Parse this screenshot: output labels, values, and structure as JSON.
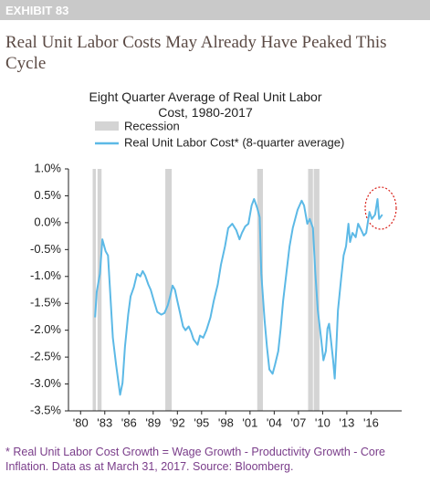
{
  "header": {
    "label": "EXHIBIT 83",
    "title": "Real Unit Labor Costs May Already Have Peaked This Cycle"
  },
  "chart_data": {
    "type": "line",
    "title": "Eight Quarter Average of Real Unit Labor Cost, 1980-2017",
    "recessions": {
      "name": "Recession",
      "color": "#d4d4d4",
      "spans": [
        [
          1981.5,
          1981.9
        ],
        [
          1982.1,
          1982.6
        ],
        [
          1990.5,
          1991.3
        ],
        [
          2001.9,
          2002.6
        ],
        [
          2008.2,
          2008.8
        ],
        [
          2008.9,
          2009.6
        ]
      ]
    },
    "series": [
      {
        "name": "Real Unit Labor Cost* (8-quarter average)",
        "color": "#5cb9e6",
        "x": [
          1981.8,
          1982.0,
          1982.4,
          1982.7,
          1983.1,
          1983.4,
          1983.6,
          1984.0,
          1984.4,
          1984.9,
          1985.2,
          1985.5,
          1985.9,
          1986.2,
          1986.6,
          1987.0,
          1987.4,
          1987.7,
          1988.0,
          1988.4,
          1988.7,
          1989.1,
          1989.5,
          1990.0,
          1990.4,
          1990.8,
          1991.1,
          1991.4,
          1991.7,
          1992.0,
          1992.3,
          1992.7,
          1993.0,
          1993.4,
          1993.7,
          1994.0,
          1994.5,
          1994.8,
          1995.2,
          1995.6,
          1996.1,
          1996.5,
          1997.0,
          1997.4,
          1997.9,
          1998.3,
          1998.8,
          1999.3,
          1999.7,
          2000.0,
          2000.4,
          2000.8,
          2001.2,
          2001.5,
          2001.9,
          2002.2,
          2002.4,
          2002.8,
          2003.1,
          2003.4,
          2003.8,
          2004.1,
          2004.5,
          2004.8,
          2005.1,
          2005.5,
          2005.9,
          2006.3,
          2006.6,
          2006.9,
          2007.4,
          2007.7,
          2008.1,
          2008.4,
          2008.8,
          2009.1,
          2009.4,
          2009.8,
          2010.1,
          2010.4,
          2010.6,
          2010.8,
          2011.0,
          2011.3,
          2011.5,
          2011.7,
          2011.9,
          2012.3,
          2012.6,
          2012.9,
          2013.2,
          2013.4,
          2013.7,
          2014.1,
          2014.4,
          2014.8,
          2015.1,
          2015.4,
          2015.8,
          2016.1,
          2016.5,
          2016.8,
          2017.0,
          2017.4
        ],
        "values": [
          -1.76,
          -1.29,
          -0.95,
          -0.31,
          -0.53,
          -0.61,
          -1.12,
          -2.14,
          -2.64,
          -3.2,
          -2.98,
          -2.31,
          -1.71,
          -1.37,
          -1.2,
          -0.95,
          -1.0,
          -0.9,
          -0.98,
          -1.15,
          -1.25,
          -1.46,
          -1.66,
          -1.71,
          -1.68,
          -1.54,
          -1.37,
          -1.17,
          -1.25,
          -1.46,
          -1.66,
          -1.93,
          -2.0,
          -1.93,
          -2.03,
          -2.17,
          -2.27,
          -2.1,
          -2.14,
          -2.0,
          -1.76,
          -1.46,
          -1.15,
          -0.78,
          -0.44,
          -0.1,
          -0.02,
          -0.14,
          -0.31,
          -0.19,
          -0.07,
          -0.02,
          0.32,
          0.44,
          0.27,
          0.1,
          -0.95,
          -1.8,
          -2.31,
          -2.73,
          -2.81,
          -2.64,
          -2.39,
          -1.97,
          -1.46,
          -0.95,
          -0.44,
          -0.1,
          0.07,
          0.24,
          0.41,
          0.32,
          -0.02,
          0.07,
          -0.1,
          -0.95,
          -1.63,
          -2.14,
          -2.56,
          -2.39,
          -1.97,
          -1.88,
          -2.14,
          -2.56,
          -2.9,
          -2.31,
          -1.63,
          -1.03,
          -0.61,
          -0.44,
          -0.02,
          -0.36,
          -0.19,
          -0.27,
          -0.02,
          -0.14,
          -0.24,
          -0.19,
          0.2,
          0.07,
          0.15,
          0.44,
          0.07,
          0.15
        ]
      }
    ],
    "xlim": [
      1978.5,
      2019.8
    ],
    "xticks": [
      {
        "value": 1980,
        "label": "'80"
      },
      {
        "value": 1983,
        "label": "'83"
      },
      {
        "value": 1986,
        "label": "'86"
      },
      {
        "value": 1989,
        "label": "'89"
      },
      {
        "value": 1992,
        "label": "'92"
      },
      {
        "value": 1995,
        "label": "'95"
      },
      {
        "value": 1998,
        "label": "'98"
      },
      {
        "value": 2001,
        "label": "'01"
      },
      {
        "value": 2004,
        "label": "'04"
      },
      {
        "value": 2007,
        "label": "'07"
      },
      {
        "value": 2010,
        "label": "'10"
      },
      {
        "value": 2013,
        "label": "'13"
      },
      {
        "value": 2016,
        "label": "'16"
      }
    ],
    "ylim": [
      -3.5,
      1.0
    ],
    "yticks": [
      {
        "value": 1.0,
        "label": "1.0%"
      },
      {
        "value": 0.5,
        "label": "0.5%"
      },
      {
        "value": 0.0,
        "label": "0.0%"
      },
      {
        "value": -0.5,
        "label": "-0.5%"
      },
      {
        "value": -1.0,
        "label": "-1.0%"
      },
      {
        "value": -1.5,
        "label": "-1.5%"
      },
      {
        "value": -2.0,
        "label": "-2.0%"
      },
      {
        "value": -2.5,
        "label": "-2.5%"
      },
      {
        "value": -3.0,
        "label": "-3.0%"
      },
      {
        "value": -3.5,
        "label": "-3.5%"
      }
    ],
    "grid": false
  },
  "footnote": "* Real Unit Labor Cost Growth = Wage Growth - Productivity Growth - Core Inflation. Data as at March 31, 2017. Source: Bloomberg."
}
